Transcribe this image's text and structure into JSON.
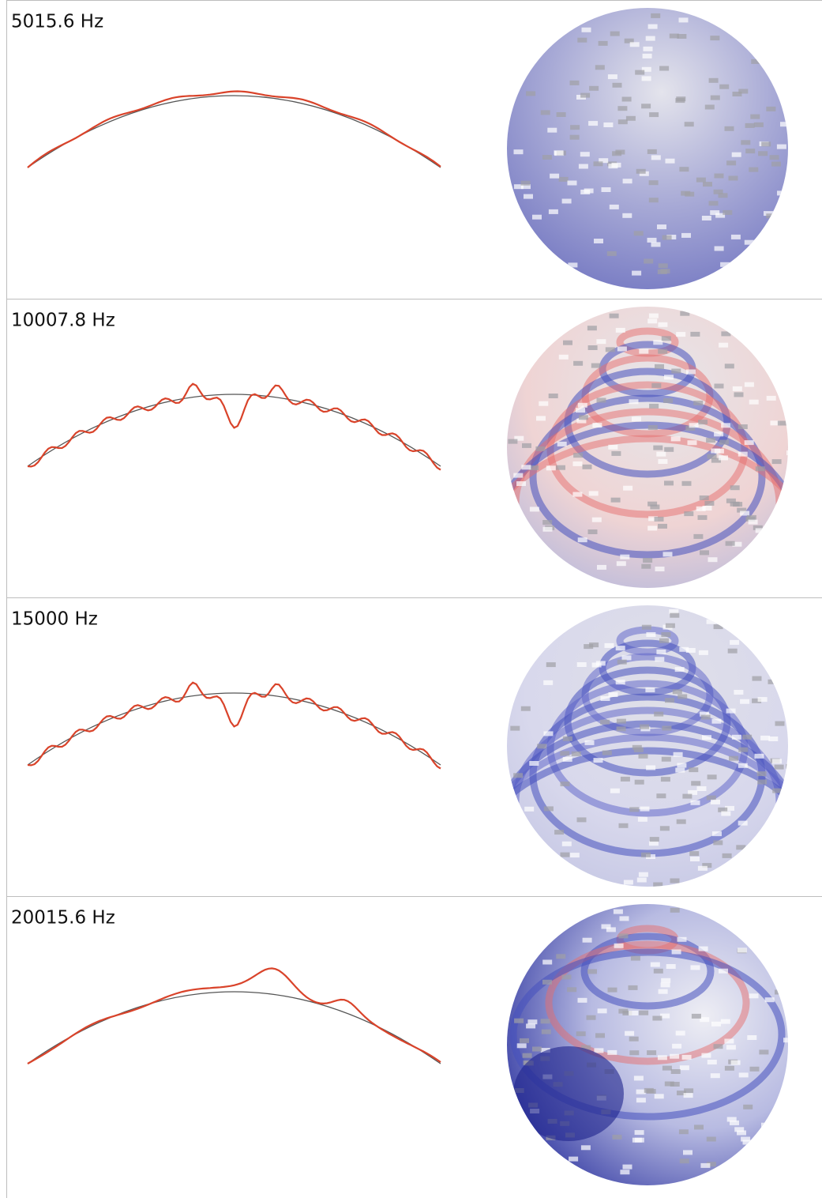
{
  "panels": [
    {
      "label": "5015.6 Hz"
    },
    {
      "label": "10007.8 Hz"
    },
    {
      "label": "15000 Hz"
    },
    {
      "label": "20015.6 Hz"
    }
  ]
}
